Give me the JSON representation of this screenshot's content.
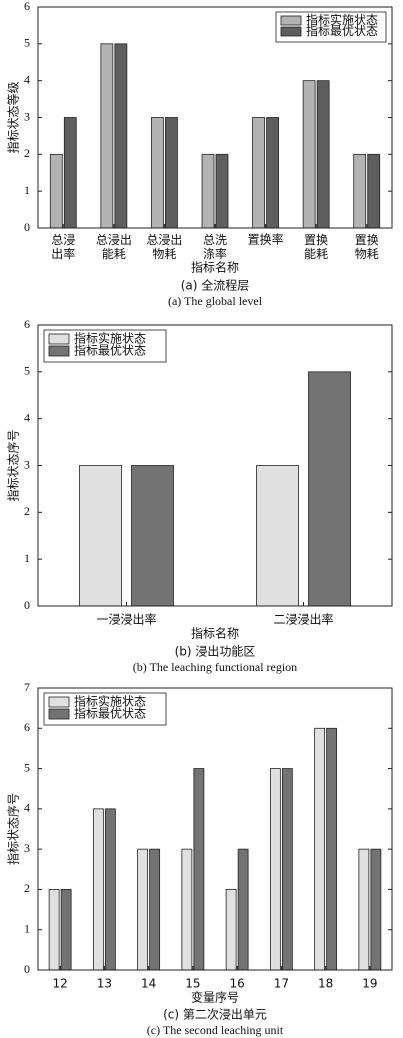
{
  "chart_data": [
    {
      "type": "bar",
      "ylabel": "指标状态等级",
      "xlabel": "指标名称",
      "caption": "(a) 全流程层",
      "caption_en": "(a) The global level",
      "categories": [
        "总浸\n出率",
        "总浸出\n能耗",
        "总浸出\n物耗",
        "总洗\n涤率",
        "置换率",
        "置换\n能耗",
        "置换\n物耗"
      ],
      "series": [
        {
          "name": "指标实施状态",
          "color": "#b3b3b3",
          "values": [
            2,
            5,
            3,
            2,
            3,
            4,
            2
          ]
        },
        {
          "name": "指标最优状态",
          "color": "#5e5e5e",
          "values": [
            3,
            5,
            3,
            2,
            3,
            4,
            2
          ]
        }
      ],
      "ylim": [
        0,
        6
      ],
      "yticks": [
        0,
        1,
        2,
        3,
        4,
        5,
        6
      ],
      "legend": "upper right"
    },
    {
      "type": "bar",
      "ylabel": "指标状态序号",
      "xlabel": "指标名称",
      "caption": "(b) 浸出功能区",
      "caption_en": "(b) The leaching functional region",
      "categories": [
        "一浸浸出率",
        "二浸浸出率"
      ],
      "series": [
        {
          "name": "指标实施状态",
          "color": "#e0e0e0",
          "values": [
            3,
            3
          ]
        },
        {
          "name": "指标最优状态",
          "color": "#737373",
          "values": [
            3,
            5
          ]
        }
      ],
      "ylim": [
        0,
        6
      ],
      "yticks": [
        0,
        1,
        2,
        3,
        4,
        5,
        6
      ],
      "legend": "upper left"
    },
    {
      "type": "bar",
      "ylabel": "指标状态序号",
      "xlabel": "变量序号",
      "caption": "(c) 第二次浸出单元",
      "caption_en": "(c) The second leaching unit",
      "categories": [
        "12",
        "13",
        "14",
        "15",
        "16",
        "17",
        "18",
        "19"
      ],
      "series": [
        {
          "name": "指标实施状态",
          "color": "#e0e0e0",
          "values": [
            2,
            4,
            3,
            3,
            2,
            5,
            6,
            3
          ]
        },
        {
          "name": "指标最优状态",
          "color": "#737373",
          "values": [
            2,
            4,
            3,
            5,
            3,
            5,
            6,
            3
          ]
        }
      ],
      "ylim": [
        0,
        7
      ],
      "yticks": [
        0,
        1,
        2,
        3,
        4,
        5,
        6,
        7
      ],
      "legend": "upper left"
    }
  ]
}
